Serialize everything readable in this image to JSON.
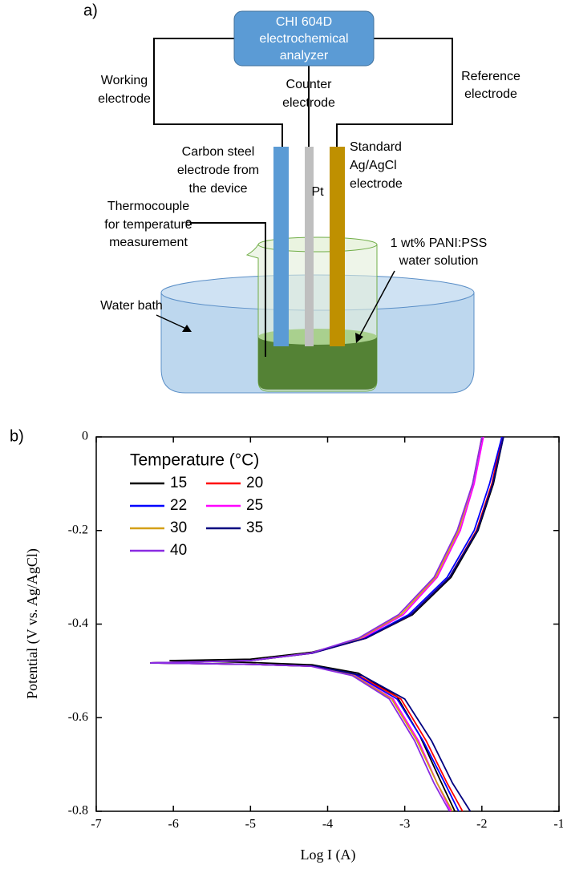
{
  "diagram": {
    "panel_label": "a)",
    "analyzer": [
      "CHI 604D",
      "electrochemical",
      "analyzer"
    ],
    "working": [
      "Working",
      "electrode"
    ],
    "counter": [
      "Counter",
      "electrode"
    ],
    "reference": [
      "Reference",
      "electrode"
    ],
    "carbon_steel": [
      "Carbon steel",
      "electrode from",
      "the device"
    ],
    "pt": "Pt",
    "standard": [
      "Standard",
      "Ag/AgCl",
      "electrode"
    ],
    "thermocouple": [
      "Thermocouple",
      "for temperature",
      "measurement"
    ],
    "solution": [
      "1 wt% PANI:PSS",
      "water solution"
    ],
    "water_bath": "Water bath"
  },
  "chart_data": {
    "type": "line",
    "panel_label": "b)",
    "x_label": "Log I (A)",
    "y_label": "Potential (V vs. Ag/AgCl)",
    "legend_title": "Temperature (°C)",
    "xlim": [
      -7,
      -1
    ],
    "xticks": [
      -7,
      -6,
      -5,
      -4,
      -3,
      -2,
      -1
    ],
    "ylim": [
      -0.8,
      0
    ],
    "yticks": [
      -0.8,
      -0.6,
      -0.4,
      -0.2,
      0
    ],
    "series": [
      {
        "name": "15",
        "color": "#000000",
        "x": [
          -1.72,
          -1.85,
          -2.05,
          -2.4,
          -2.9,
          -3.5,
          -4.2,
          -5.0,
          -6.05,
          -5.0,
          -4.2,
          -3.6,
          -3.1,
          -2.8,
          -2.55,
          -2.35
        ],
        "values": [
          0,
          -0.1,
          -0.2,
          -0.3,
          -0.38,
          -0.43,
          -0.46,
          -0.475,
          -0.478,
          -0.482,
          -0.487,
          -0.505,
          -0.555,
          -0.64,
          -0.73,
          -0.8
        ]
      },
      {
        "name": "20",
        "color": "#ff0000",
        "x": [
          -1.74,
          -1.87,
          -2.07,
          -2.42,
          -2.92,
          -3.5,
          -4.2,
          -5.0,
          -6.3,
          -5.0,
          -4.2,
          -3.6,
          -3.05,
          -2.72,
          -2.45,
          -2.25
        ],
        "values": [
          0,
          -0.1,
          -0.2,
          -0.3,
          -0.38,
          -0.43,
          -0.462,
          -0.478,
          -0.483,
          -0.486,
          -0.49,
          -0.51,
          -0.56,
          -0.65,
          -0.74,
          -0.8
        ]
      },
      {
        "name": "22",
        "color": "#0000ff",
        "x": [
          -1.74,
          -1.9,
          -2.1,
          -2.45,
          -2.95,
          -3.52,
          -4.2,
          -5.0,
          -6.3,
          -5.0,
          -4.2,
          -3.62,
          -3.1,
          -2.76,
          -2.48,
          -2.3
        ],
        "values": [
          0,
          -0.1,
          -0.2,
          -0.3,
          -0.38,
          -0.43,
          -0.462,
          -0.478,
          -0.483,
          -0.486,
          -0.49,
          -0.51,
          -0.56,
          -0.65,
          -0.74,
          -0.8
        ]
      },
      {
        "name": "25",
        "color": "#ff00ff",
        "x": [
          -1.98,
          -2.1,
          -2.28,
          -2.58,
          -3.02,
          -3.55,
          -4.2,
          -5.0,
          -6.3,
          -5.0,
          -4.2,
          -3.65,
          -3.15,
          -2.82,
          -2.58,
          -2.4
        ],
        "values": [
          0,
          -0.1,
          -0.2,
          -0.3,
          -0.38,
          -0.43,
          -0.462,
          -0.478,
          -0.483,
          -0.486,
          -0.49,
          -0.51,
          -0.56,
          -0.65,
          -0.74,
          -0.8
        ]
      },
      {
        "name": "30",
        "color": "#d4a017",
        "x": [
          -2.0,
          -2.12,
          -2.3,
          -2.6,
          -3.05,
          -3.58,
          -4.22,
          -5.0,
          -6.3,
          -5.0,
          -4.2,
          -3.66,
          -3.17,
          -2.84,
          -2.58,
          -2.38
        ],
        "values": [
          0,
          -0.1,
          -0.2,
          -0.3,
          -0.38,
          -0.43,
          -0.462,
          -0.478,
          -0.483,
          -0.486,
          -0.49,
          -0.51,
          -0.56,
          -0.65,
          -0.74,
          -0.8
        ]
      },
      {
        "name": "35",
        "color": "#000080",
        "x": [
          -1.72,
          -1.86,
          -2.06,
          -2.42,
          -2.92,
          -3.5,
          -4.2,
          -5.0,
          -6.3,
          -5.0,
          -4.15,
          -3.55,
          -3.0,
          -2.65,
          -2.38,
          -2.15
        ],
        "values": [
          0,
          -0.1,
          -0.2,
          -0.3,
          -0.38,
          -0.43,
          -0.462,
          -0.478,
          -0.483,
          -0.486,
          -0.49,
          -0.51,
          -0.56,
          -0.65,
          -0.74,
          -0.8
        ]
      },
      {
        "name": "40",
        "color": "#8a2be2",
        "x": [
          -2.0,
          -2.12,
          -2.32,
          -2.62,
          -3.08,
          -3.6,
          -4.22,
          -5.0,
          -6.3,
          -5.0,
          -4.22,
          -3.68,
          -3.2,
          -2.87,
          -2.62,
          -2.42
        ],
        "values": [
          0,
          -0.1,
          -0.2,
          -0.3,
          -0.38,
          -0.43,
          -0.462,
          -0.478,
          -0.483,
          -0.486,
          -0.49,
          -0.51,
          -0.56,
          -0.65,
          -0.74,
          -0.8
        ]
      }
    ]
  }
}
